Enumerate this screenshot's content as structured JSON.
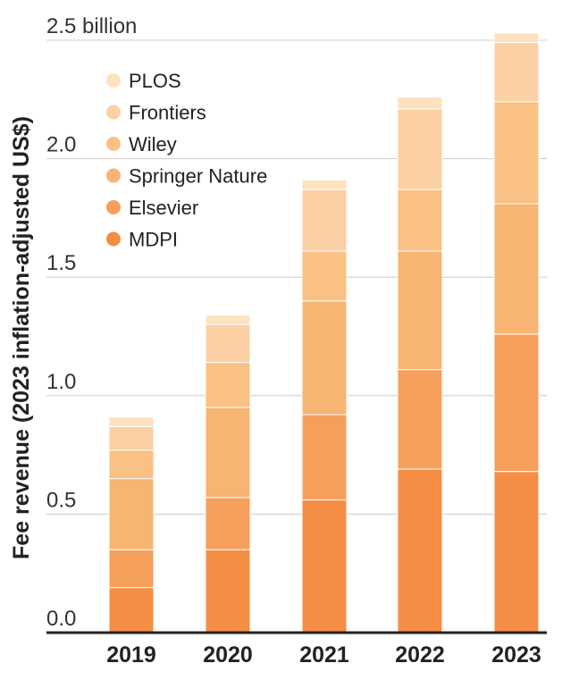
{
  "chart_data": {
    "type": "bar",
    "stacked": true,
    "title": "",
    "xlabel": "",
    "ylabel": "Fee revenue (2023 inflation-adjusted US$)",
    "ylim": [
      0,
      2.5
    ],
    "y_ticks": [
      {
        "value": 0,
        "label": "0.0"
      },
      {
        "value": 0.5,
        "label": "0.5"
      },
      {
        "value": 1.0,
        "label": "1.0"
      },
      {
        "value": 1.5,
        "label": "1.5"
      },
      {
        "value": 2.0,
        "label": "2.0"
      },
      {
        "value": 2.5,
        "label": "2.5 billion"
      }
    ],
    "grid": true,
    "legend_position": "top-left",
    "categories": [
      "2019",
      "2020",
      "2021",
      "2022",
      "2023"
    ],
    "series": [
      {
        "name": "MDPI",
        "color": "#f58d45",
        "values": [
          0.19,
          0.35,
          0.56,
          0.69,
          0.68
        ]
      },
      {
        "name": "Elsevier",
        "color": "#f69f5c",
        "values": [
          0.16,
          0.22,
          0.36,
          0.42,
          0.58
        ]
      },
      {
        "name": "Springer Nature",
        "color": "#f8b472",
        "values": [
          0.3,
          0.38,
          0.48,
          0.5,
          0.55
        ]
      },
      {
        "name": "Wiley",
        "color": "#f9c184",
        "values": [
          0.12,
          0.19,
          0.21,
          0.26,
          0.43
        ]
      },
      {
        "name": "Frontiers",
        "color": "#fbd0a4",
        "values": [
          0.1,
          0.16,
          0.26,
          0.34,
          0.25
        ]
      },
      {
        "name": "PLOS",
        "color": "#fde2c0",
        "values": [
          0.04,
          0.04,
          0.04,
          0.05,
          0.04
        ]
      }
    ]
  }
}
